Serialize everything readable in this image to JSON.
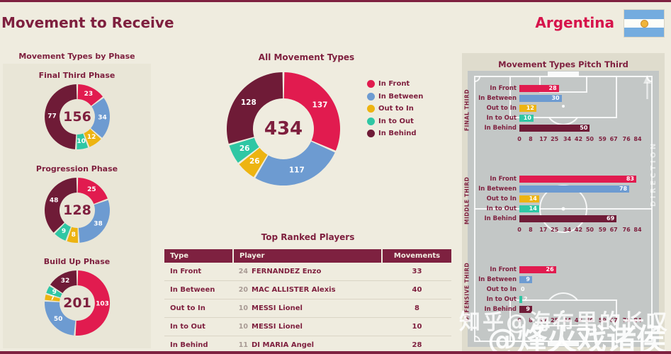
{
  "header": {
    "title": "Movement to Receive",
    "team": "Argentina"
  },
  "colors": {
    "in_front": "#E11B4F",
    "in_between": "#6D9BD1",
    "out_to_in": "#EDB411",
    "in_to_out": "#2FC7A4",
    "in_behind": "#6F1B37",
    "text_maroon": "#7E1F3E",
    "background": "#EFECDF",
    "flag_blue": "#74ACDF",
    "flag_sun": "#F0B43A"
  },
  "categories": [
    "In Front",
    "In Between",
    "Out to In",
    "In to Out",
    "In Behind"
  ],
  "left_column": {
    "section_title": "Movement Types by Phase"
  },
  "chart_data": [
    {
      "type": "pie",
      "variant": "donut",
      "title": "Final Third Phase",
      "center_total": 156,
      "categories": [
        "In Front",
        "In Between",
        "Out to In",
        "In to Out",
        "In Behind"
      ],
      "values": [
        23,
        34,
        12,
        10,
        77
      ]
    },
    {
      "type": "pie",
      "variant": "donut",
      "title": "Progression Phase",
      "center_total": 128,
      "categories": [
        "In Front",
        "In Between",
        "Out to In",
        "In to Out",
        "In Behind"
      ],
      "values": [
        25,
        38,
        8,
        9,
        48
      ]
    },
    {
      "type": "pie",
      "variant": "donut",
      "title": "Build Up Phase",
      "center_total": 201,
      "categories": [
        "In Front",
        "In Between",
        "Out to In",
        "In to Out",
        "In Behind"
      ],
      "values": [
        103,
        50,
        7,
        9,
        32
      ]
    },
    {
      "type": "pie",
      "variant": "donut",
      "title": "All Movement Types",
      "center_total": 434,
      "categories": [
        "In Front",
        "In Between",
        "Out to In",
        "In to Out",
        "In Behind"
      ],
      "values": [
        137,
        117,
        26,
        26,
        128
      ],
      "legend_position": "right"
    },
    {
      "type": "bar",
      "orientation": "horizontal",
      "title": "Movement Types Pitch Third",
      "categories": [
        "In Front",
        "In Between",
        "Out to In",
        "In to Out",
        "In Behind"
      ],
      "groups": [
        {
          "label": "FINAL THIRD",
          "values": [
            28,
            30,
            12,
            10,
            50
          ]
        },
        {
          "label": "MIDDLE THIRD",
          "values": [
            83,
            78,
            14,
            14,
            69
          ]
        },
        {
          "label": "DEFENSIVE THIRD",
          "values": [
            26,
            9,
            0,
            2,
            9
          ]
        }
      ],
      "x_ticks": [
        0,
        8,
        17,
        25,
        34,
        42,
        50,
        59,
        67,
        76,
        84
      ],
      "xlim": [
        0,
        84
      ]
    }
  ],
  "table": {
    "title": "Top Ranked Players",
    "columns": [
      "Type",
      "Player",
      "Movements"
    ],
    "rows": [
      {
        "type": "In Front",
        "number": "24",
        "player": "FERNANDEZ Enzo",
        "movements": "33"
      },
      {
        "type": "In Between",
        "number": "20",
        "player": "MAC ALLISTER Alexis",
        "movements": "40"
      },
      {
        "type": "Out to In",
        "number": "10",
        "player": "MESSI Lionel",
        "movements": "8"
      },
      {
        "type": "In to Out",
        "number": "10",
        "player": "MESSI Lionel",
        "movements": "10"
      },
      {
        "type": "In Behind",
        "number": "11",
        "player": "DI MARIA Angel",
        "movements": "28"
      }
    ]
  },
  "pitch_panel": {
    "title": "Movement Types Pitch Third",
    "direction_label": "DIRECTION"
  },
  "watermarks": {
    "zhihu": "知乎@海布里的长叹",
    "signature": "@烽火戏诸侯"
  }
}
